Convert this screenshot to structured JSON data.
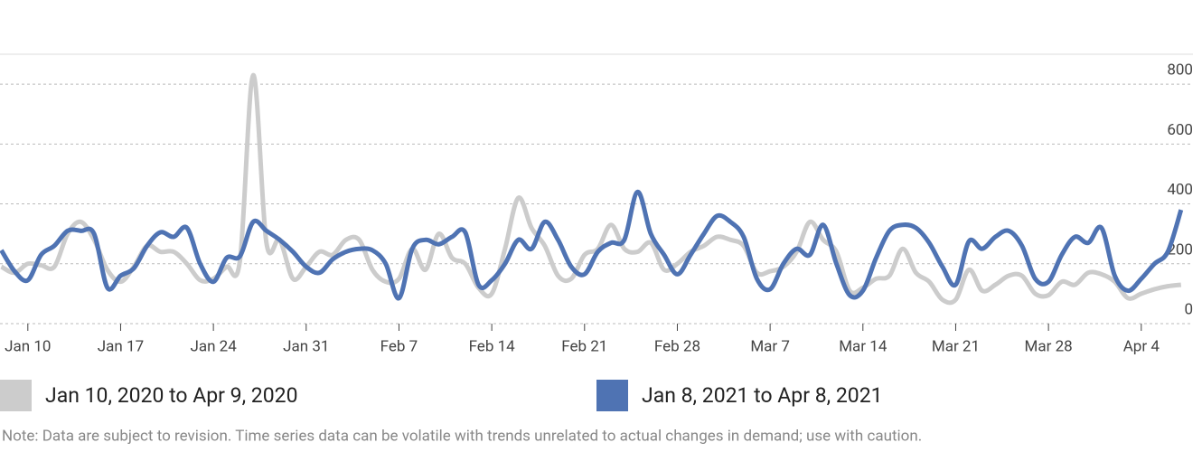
{
  "chart_data": {
    "type": "line",
    "x": [
      -2,
      -1,
      0,
      1,
      2,
      3,
      4,
      5,
      6,
      7,
      8,
      9,
      10,
      11,
      12,
      13,
      14,
      15,
      16,
      17,
      18,
      19,
      20,
      21,
      22,
      23,
      24,
      25,
      26,
      27,
      28,
      29,
      30,
      31,
      32,
      33,
      34,
      35,
      36,
      37,
      38,
      39,
      40,
      41,
      42,
      43,
      44,
      45,
      46,
      47,
      48,
      49,
      50,
      51,
      52,
      53,
      54,
      55,
      56,
      57,
      58,
      59,
      60,
      61,
      62,
      63,
      64,
      65,
      66,
      67,
      68,
      69,
      70,
      71,
      72,
      73,
      74,
      75,
      76,
      77,
      78,
      79,
      80,
      81,
      82,
      83,
      84,
      85,
      86,
      87
    ],
    "xlim": [
      -2.1,
      87.9
    ],
    "xticks": [
      {
        "value": 0,
        "label": "Jan 10"
      },
      {
        "value": 7,
        "label": "Jan 17"
      },
      {
        "value": 14,
        "label": "Jan 24"
      },
      {
        "value": 21,
        "label": "Jan 31"
      },
      {
        "value": 28,
        "label": "Feb 7"
      },
      {
        "value": 35,
        "label": "Feb 14"
      },
      {
        "value": 42,
        "label": "Feb 21"
      },
      {
        "value": 49,
        "label": "Feb 28"
      },
      {
        "value": 56,
        "label": "Mar 7"
      },
      {
        "value": 63,
        "label": "Mar 14"
      },
      {
        "value": 70,
        "label": "Mar 21"
      },
      {
        "value": 77,
        "label": "Mar 28"
      },
      {
        "value": 84,
        "label": "Apr 4"
      }
    ],
    "ylim": [
      0,
      900
    ],
    "yticks": [
      0,
      200,
      400,
      600,
      800
    ],
    "grid": true,
    "legend": "bottom",
    "series": [
      {
        "name": "Jan 10, 2020 to Apr 9, 2020",
        "color": "#cccccc",
        "values": [
          190,
          170,
          200,
          195,
          190,
          300,
          340,
          280,
          180,
          140,
          190,
          260,
          240,
          240,
          200,
          145,
          150,
          190,
          210,
          830,
          270,
          280,
          150,
          190,
          240,
          230,
          280,
          280,
          180,
          140,
          150,
          250,
          180,
          300,
          220,
          200,
          120,
          100,
          250,
          420,
          320,
          260,
          160,
          150,
          230,
          250,
          330,
          250,
          240,
          270,
          180,
          200,
          240,
          260,
          290,
          280,
          260,
          170,
          175,
          190,
          240,
          340,
          280,
          240,
          110,
          120,
          150,
          160,
          250,
          170,
          140,
          80,
          80,
          180,
          110,
          130,
          160,
          160,
          100,
          95,
          140,
          130,
          170,
          165,
          140,
          85,
          100,
          115,
          125,
          130
        ]
      },
      {
        "name": "Jan 8, 2021 to Apr 8, 2021",
        "color": "#4f73b3",
        "values": [
          245,
          175,
          145,
          230,
          260,
          310,
          310,
          300,
          120,
          160,
          185,
          260,
          305,
          290,
          320,
          200,
          140,
          220,
          225,
          340,
          310,
          280,
          240,
          190,
          170,
          215,
          240,
          250,
          245,
          200,
          85,
          250,
          280,
          265,
          290,
          305,
          130,
          145,
          200,
          280,
          250,
          340,
          280,
          190,
          165,
          240,
          270,
          280,
          440,
          300,
          230,
          165,
          230,
          300,
          360,
          340,
          290,
          150,
          115,
          200,
          250,
          230,
          330,
          200,
          95,
          110,
          220,
          310,
          330,
          320,
          270,
          190,
          130,
          275,
          250,
          290,
          310,
          260,
          150,
          140,
          230,
          290,
          270,
          320,
          160,
          110,
          150,
          200,
          240,
          380
        ]
      }
    ],
    "note": "Note: Data are subject to revision. Time series data can be volatile with trends unrelated to actual changes in demand; use with caution."
  }
}
